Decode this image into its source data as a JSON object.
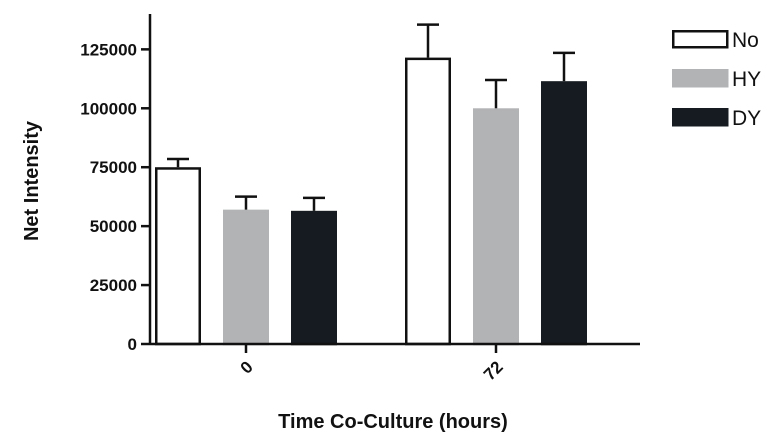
{
  "chart_data": {
    "type": "bar",
    "title": "",
    "xlabel": "Time Co-Culture (hours)",
    "ylabel": "Net Intensity",
    "categories": [
      "0",
      "72"
    ],
    "ylim": [
      0,
      140000
    ],
    "yticks": [
      0,
      25000,
      50000,
      75000,
      100000,
      125000
    ],
    "ytick_labels": [
      "0",
      "25000",
      "50000",
      "75000",
      "100000",
      "125000"
    ],
    "grid": false,
    "legend_position": "top-right",
    "series": [
      {
        "name": "No",
        "values": [
          75000,
          121500
        ],
        "errors": [
          3500,
          14000
        ],
        "color": "#ffffff",
        "stroke": "#111111"
      },
      {
        "name": "HY",
        "values": [
          57000,
          100000
        ],
        "errors": [
          5500,
          12000
        ],
        "color": "#b2b3b5",
        "stroke": "#b2b3b5"
      },
      {
        "name": "DY",
        "values": [
          56500,
          111500
        ],
        "errors": [
          5500,
          12000
        ],
        "color": "#151b20",
        "stroke": "#151b20"
      }
    ]
  }
}
